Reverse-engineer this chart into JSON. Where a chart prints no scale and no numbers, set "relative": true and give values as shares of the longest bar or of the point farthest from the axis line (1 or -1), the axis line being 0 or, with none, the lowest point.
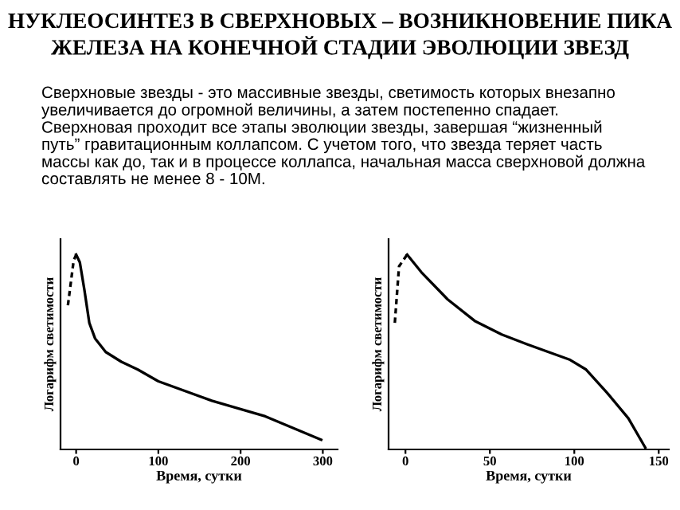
{
  "chart_data": [
    {
      "type": "line",
      "title": "НУКЛЕОСИНТЕЗ В СВЕРХНОВЫХ – ВОЗНИКНОВЕНИЕ ПИКА\nЖЕЛЕЗА НА КОНЕЧНОЙ СТАДИИ ЭВОЛЮЦИИ ЗВЕЗД",
      "annotations": [
        "Сверхновые звезды - это массивные звезды, светимость которых внезапно\nувеличивается до огромной величины, а затем постепенно спадает.\nСверхновая проходит все этапы эволюции звезды, завершая “жизненный\nпуть” гравитационным коллапсом. С учетом того, что звезда теряет часть\nмассы как до, так и в процессе коллапса, начальная масса сверхновой должна\nсоставлять не менее 8 - 10M."
      ],
      "xlabel": "Время, сутки",
      "ylabel": "Логарифм светимости",
      "relative": true,
      "xlim": [
        -19,
        318
      ],
      "xticks": [
        0,
        100,
        200,
        300
      ],
      "series": [
        {
          "color": "#000000",
          "line_style": "dashed",
          "x": [
            -10,
            -3,
            0
          ],
          "values": [
            0.74,
            0.97,
            1
          ]
        },
        {
          "color": "#000000",
          "line_style": "solid",
          "x": [
            0,
            4.5,
            10,
            16,
            23,
            36,
            55,
            75,
            100,
            165,
            230,
            298
          ],
          "values": [
            1,
            0.96,
            0.82,
            0.65,
            0.57,
            0.5,
            0.45,
            0.41,
            0.35,
            0.25,
            0.17,
            0.05
          ]
        }
      ]
    },
    {
      "type": "line",
      "xlabel": "Время, сутки",
      "ylabel": "Логарифм светимости",
      "relative": true,
      "xlim": [
        -10,
        156
      ],
      "xticks": [
        0,
        50,
        100,
        150
      ],
      "series": [
        {
          "color": "#000000",
          "line_style": "dashed",
          "x": [
            -6.3,
            -3.8,
            1
          ],
          "values": [
            0.65,
            0.94,
            1
          ]
        },
        {
          "color": "#000000",
          "line_style": "solid",
          "x": [
            1,
            9.4,
            25,
            41,
            57,
            72,
            88,
            97.5,
            107,
            119.5,
            132,
            142
          ],
          "values": [
            1,
            0.91,
            0.77,
            0.66,
            0.59,
            0.54,
            0.49,
            0.46,
            0.41,
            0.29,
            0.16,
            0.01
          ]
        }
      ]
    }
  ]
}
